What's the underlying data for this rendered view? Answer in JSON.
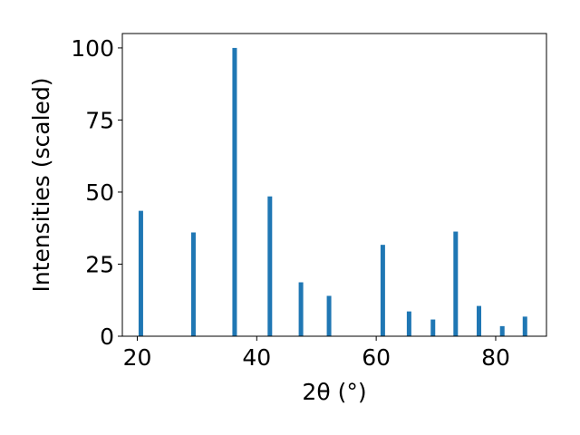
{
  "chart_data": {
    "type": "bar",
    "title": "",
    "xlabel": "2θ (°)",
    "ylabel": "Intensities (scaled)",
    "xlim": [
      17.5,
      88.5
    ],
    "ylim": [
      0,
      105
    ],
    "grid": false,
    "bar_color": "#1f77b4",
    "x_ticks": [
      20,
      40,
      60,
      80
    ],
    "y_ticks": [
      0,
      25,
      50,
      75,
      100
    ],
    "x": [
      20.6,
      29.4,
      36.3,
      42.2,
      47.4,
      52.1,
      61.1,
      65.5,
      69.5,
      73.3,
      77.2,
      81.1,
      84.9
    ],
    "values": [
      43.5,
      36,
      100,
      48.5,
      18.7,
      14,
      31.7,
      8.6,
      5.8,
      36.3,
      10.5,
      3.5,
      6.8
    ]
  }
}
